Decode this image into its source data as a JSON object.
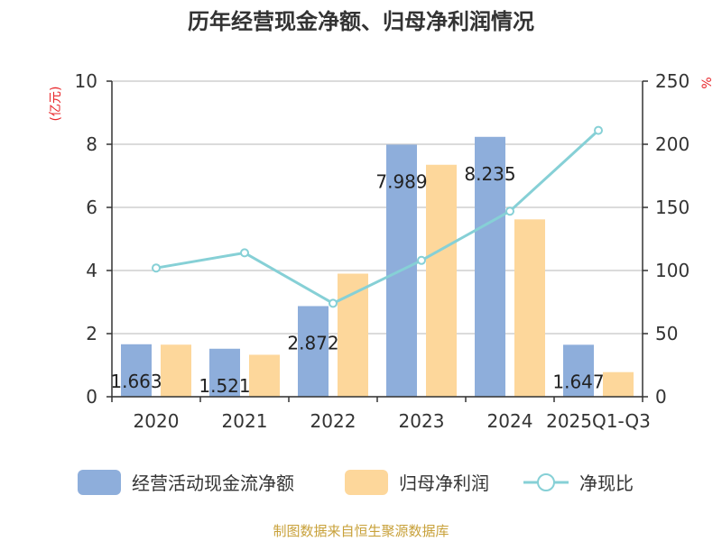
{
  "chart_data": {
    "type": "bar",
    "title": "历年经营现金净额、归母净利润情况",
    "categories": [
      "2020",
      "2021",
      "2022",
      "2023",
      "2024",
      "2025Q1-Q3"
    ],
    "series": [
      {
        "name": "经营活动现金流净额",
        "type": "bar",
        "axis": "left",
        "color": "#8eaedb",
        "values": [
          1.663,
          1.521,
          2.872,
          7.989,
          8.235,
          1.647
        ],
        "labels": [
          "1.663",
          "1.521",
          "2.872",
          "7.989",
          "8.235",
          "1.647"
        ]
      },
      {
        "name": "归母净利润",
        "type": "bar",
        "axis": "left",
        "color": "#fdd79b",
        "values": [
          1.65,
          1.33,
          3.9,
          7.35,
          5.62,
          0.78
        ]
      },
      {
        "name": "净现比",
        "type": "line",
        "axis": "right",
        "color": "#86d0d6",
        "values": [
          102,
          114,
          74,
          108,
          147,
          211
        ]
      }
    ],
    "y_left": {
      "unit": "(亿元)",
      "min": 0,
      "max": 10,
      "ticks": [
        0,
        2,
        4,
        6,
        8,
        10
      ]
    },
    "y_right": {
      "unit": "%",
      "min": 0,
      "max": 250,
      "ticks": [
        0,
        50,
        100,
        150,
        200,
        250
      ]
    },
    "grid": true,
    "legend_position": "bottom"
  },
  "source": "制图数据来自恒生聚源数据库"
}
